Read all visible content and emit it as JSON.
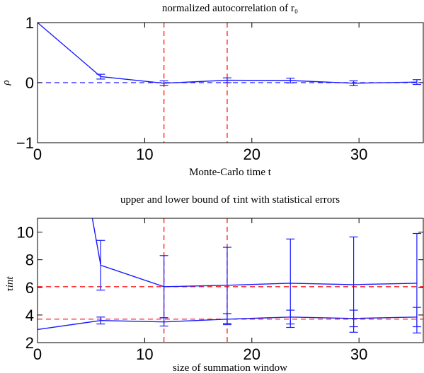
{
  "colors": {
    "series": "#1a1aff",
    "reference": "#ff1a1a",
    "frame": "#000000"
  },
  "chart_data": [
    {
      "type": "line",
      "title": "normalized autocorrelation of r₀",
      "xlabel": "Monte-Carlo time t",
      "ylabel": "ρ",
      "xlim": [
        0,
        36
      ],
      "ylim": [
        -1,
        1
      ],
      "xticks": [
        0,
        10,
        20,
        30
      ],
      "xtick_labels": [
        "0",
        "10",
        "20",
        "30"
      ],
      "yticks": [
        -1,
        0,
        1
      ],
      "ytick_labels": [
        "−1",
        "0",
        "1"
      ],
      "grid": false,
      "series": [
        {
          "x": [
            0,
            5.9,
            11.8,
            17.7,
            23.6,
            29.5,
            35.4
          ],
          "y": [
            1.0,
            0.1,
            -0.01,
            0.04,
            0.035,
            -0.01,
            0.01
          ],
          "err": [
            0,
            0.04,
            0.04,
            0.04,
            0.04,
            0.04,
            0.04
          ]
        }
      ],
      "hlines": [
        0
      ],
      "vlines": [
        11.8,
        17.7
      ]
    },
    {
      "type": "line",
      "title": "upper and lower bound of τint with statistical errors",
      "xlabel": "size of summation window",
      "ylabel": "τint",
      "xlim": [
        0,
        36
      ],
      "ylim": [
        2,
        11
      ],
      "xticks": [
        0,
        10,
        20,
        30
      ],
      "xtick_labels": [
        "0",
        "10",
        "20",
        "30"
      ],
      "yticks": [
        2,
        4,
        6,
        8,
        10
      ],
      "ytick_labels": [
        "2",
        "4",
        "6",
        "8",
        "10"
      ],
      "grid": false,
      "series": [
        {
          "x": [
            5.0,
            5.9,
            11.8,
            17.7,
            23.6,
            29.5,
            35.4
          ],
          "y": [
            11.5,
            7.6,
            6.05,
            6.15,
            6.3,
            6.2,
            6.3
          ],
          "err": [
            0,
            1.8,
            2.25,
            2.75,
            3.2,
            3.45,
            3.6
          ]
        },
        {
          "x": [
            0,
            5.9,
            11.8,
            17.7,
            23.6,
            29.5,
            35.4
          ],
          "y": [
            2.95,
            3.6,
            3.5,
            3.7,
            3.85,
            3.75,
            3.85
          ],
          "err": [
            0,
            0.25,
            0.3,
            0.4,
            0.5,
            0.6,
            0.7
          ]
        }
      ],
      "hlines": [
        6.05,
        3.7
      ],
      "vlines": [
        11.8,
        17.7
      ]
    }
  ]
}
